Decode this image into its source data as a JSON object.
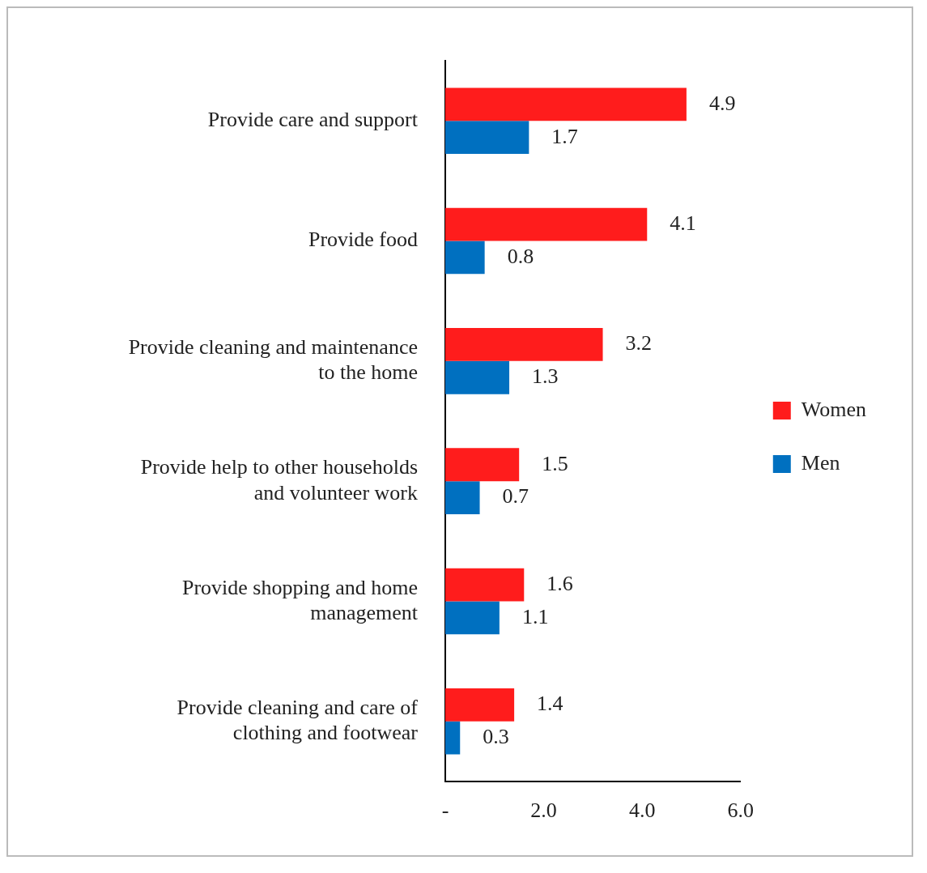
{
  "chart_data": {
    "type": "bar",
    "orientation": "horizontal",
    "categories": [
      "Provide care and support",
      "Provide food",
      "Provide cleaning and maintenance to the home",
      "Provide help to other households and volunteer work",
      "Provide shopping and home management",
      "Provide cleaning and care of clothing and footwear"
    ],
    "series": [
      {
        "name": "Women",
        "color": "#ff1c1c",
        "values": [
          4.9,
          4.1,
          3.2,
          1.5,
          1.6,
          1.4
        ]
      },
      {
        "name": "Men",
        "color": "#0070c0",
        "values": [
          1.7,
          0.8,
          1.3,
          0.7,
          1.1,
          0.3
        ]
      }
    ],
    "xlim": [
      0,
      6
    ],
    "xticks": [
      {
        "value": 0,
        "label": "-"
      },
      {
        "value": 2,
        "label": "2.0"
      },
      {
        "value": 4,
        "label": "4.0"
      },
      {
        "value": 6,
        "label": "6.0"
      }
    ],
    "grid": false,
    "legend": "right",
    "data_labels": true
  }
}
